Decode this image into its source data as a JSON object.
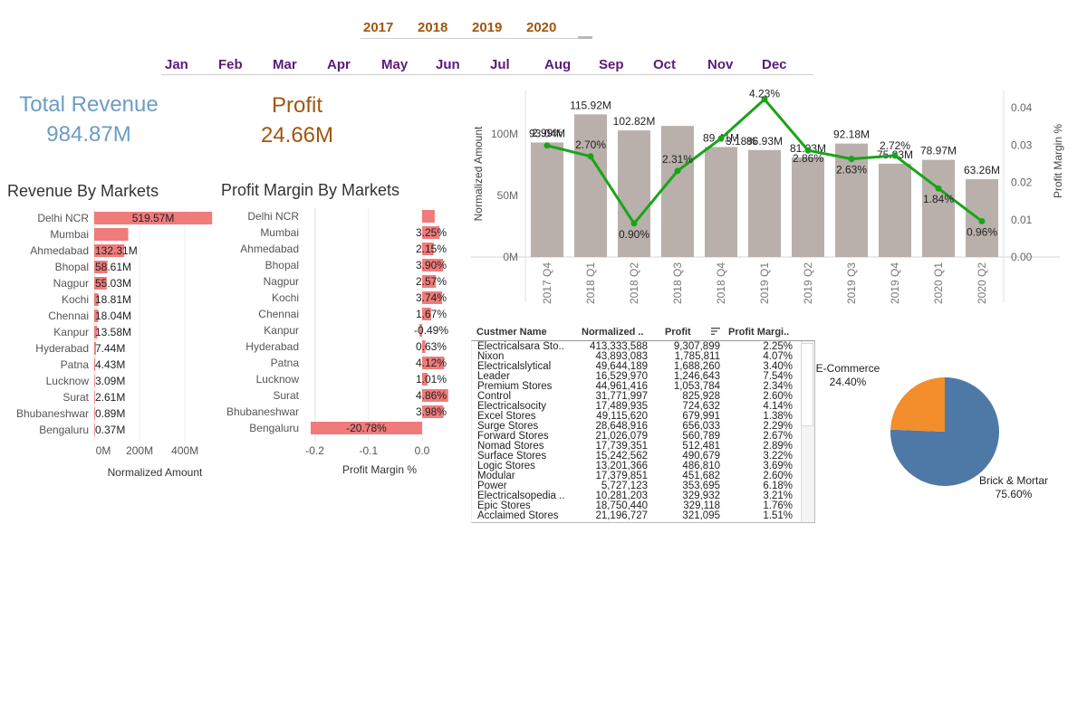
{
  "filters": {
    "years": [
      "2017",
      "2018",
      "2019",
      "2020"
    ],
    "months": [
      "Jan",
      "Feb",
      "Mar",
      "Apr",
      "May",
      "Jun",
      "Jul",
      "Aug",
      "Sep",
      "Oct",
      "Nov",
      "Dec"
    ]
  },
  "kpis": {
    "revenue_label": "Total Revenue",
    "revenue_value": "984.87M",
    "profit_label": "Profit",
    "profit_value": "24.66M"
  },
  "colors": {
    "kpi_revenue": "#6c9cc4",
    "kpi_profit": "#a0560e",
    "bar_red": "#f07b7b",
    "bar_grey": "#b9b0ab",
    "line_green": "#18a418",
    "pie_brick": "#4e79a7",
    "pie_ecom": "#f28e2b",
    "year_text": "#a0560e",
    "month_text": "#5b1a7a"
  },
  "revenue_by_markets": {
    "title": "Revenue By Markets",
    "xlabel": "Normalized Amount",
    "ticks": [
      "0M",
      "200M",
      "400M"
    ]
  },
  "profit_margin_by_markets": {
    "title": "Profit Margin By Markets",
    "xlabel": "Profit Margin %",
    "ticks": [
      "-0.2",
      "-0.1",
      "0.0"
    ]
  },
  "trend": {
    "y_left_label": "Normalized Amount",
    "y_right_label": "Profit Margin %",
    "y_left_ticks": [
      "0M",
      "50M",
      "100M"
    ],
    "y_right_ticks": [
      "0.00",
      "0.01",
      "0.02",
      "0.03",
      "0.04"
    ]
  },
  "table": {
    "headers": [
      "Custmer Name",
      "Normalized ..",
      "Profit",
      "Profit Margi.."
    ],
    "rows": [
      [
        "Electricalsara Sto..",
        "413,333,588",
        "9,307,899",
        "2.25%"
      ],
      [
        "Nixon",
        "43,893,083",
        "1,785,811",
        "4.07%"
      ],
      [
        "Electricalslytical",
        "49,644,189",
        "1,688,260",
        "3.40%"
      ],
      [
        "Leader",
        "16,529,970",
        "1,246,643",
        "7.54%"
      ],
      [
        "Premium Stores",
        "44,961,416",
        "1,053,784",
        "2.34%"
      ],
      [
        "Control",
        "31,771,997",
        "825,928",
        "2.60%"
      ],
      [
        "Electricalsocity",
        "17,489,935",
        "724,632",
        "4.14%"
      ],
      [
        "Excel Stores",
        "49,115,620",
        "679,991",
        "1.38%"
      ],
      [
        "Surge Stores",
        "28,648,916",
        "656,033",
        "2.29%"
      ],
      [
        "Forward Stores",
        "21,026,079",
        "560,789",
        "2.67%"
      ],
      [
        "Nomad Stores",
        "17,739,351",
        "512,481",
        "2.89%"
      ],
      [
        "Surface Stores",
        "15,242,562",
        "490,679",
        "3.22%"
      ],
      [
        "Logic Stores",
        "13,201,366",
        "486,810",
        "3.69%"
      ],
      [
        "Modular",
        "17,379,851",
        "451,682",
        "2.60%"
      ],
      [
        "Power",
        "5,727,123",
        "353,695",
        "6.18%"
      ],
      [
        "Electricalsopedia ..",
        "10,281,203",
        "329,932",
        "3.21%"
      ],
      [
        "Epic Stores",
        "18,750,440",
        "329,118",
        "1.76%"
      ],
      [
        "Acclaimed Stores",
        "21,196,727",
        "321,095",
        "1.51%"
      ]
    ]
  },
  "chart_data": [
    {
      "type": "bar",
      "title": "Revenue By Markets",
      "xlabel": "Normalized Amount",
      "orientation": "horizontal",
      "categories": [
        "Delhi NCR",
        "Mumbai",
        "Ahmedabad",
        "Bhopal",
        "Nagpur",
        "Kochi",
        "Chennai",
        "Kanpur",
        "Hyderabad",
        "Patna",
        "Lucknow",
        "Surat",
        "Bhubaneshwar",
        "Bengaluru"
      ],
      "values": [
        519.57,
        150.0,
        132.31,
        58.61,
        55.03,
        18.81,
        18.04,
        13.58,
        7.44,
        4.43,
        3.09,
        2.61,
        0.89,
        0.37
      ],
      "labels": [
        "519.57M",
        "",
        "132.31M",
        "58.61M",
        "55.03M",
        "18.81M",
        "18.04M",
        "13.58M",
        "7.44M",
        "4.43M",
        "3.09M",
        "2.61M",
        "0.89M",
        "0.37M"
      ],
      "xlim": [
        0,
        530
      ]
    },
    {
      "type": "bar",
      "title": "Profit Margin By Markets",
      "xlabel": "Profit Margin %",
      "orientation": "horizontal",
      "categories": [
        "Delhi NCR",
        "Mumbai",
        "Ahmedabad",
        "Bhopal",
        "Nagpur",
        "Kochi",
        "Chennai",
        "Kanpur",
        "Hyderabad",
        "Patna",
        "Lucknow",
        "Surat",
        "Bhubaneshwar",
        "Bengaluru"
      ],
      "values": [
        0.0235,
        0.0325,
        0.0215,
        0.039,
        0.0257,
        0.0374,
        0.0167,
        -0.0049,
        0.0063,
        0.0412,
        0.0101,
        0.0486,
        0.0398,
        -0.2078
      ],
      "labels": [
        "",
        "3.25%",
        "2.15%",
        "3.90%",
        "2.57%",
        "3.74%",
        "1.67%",
        "-0.49%",
        "0.63%",
        "4.12%",
        "1.01%",
        "4.86%",
        "3.98%",
        "-20.78%"
      ],
      "xlim": [
        -0.21,
        0.06
      ]
    },
    {
      "type": "bar",
      "title": "",
      "ylabel": "Normalized Amount",
      "y2label": "Profit Margin %",
      "categories": [
        "2017 Q4",
        "2018 Q1",
        "2018 Q2",
        "2018 Q3",
        "2018 Q4",
        "2019 Q1",
        "2019 Q2",
        "2019 Q3",
        "2019 Q4",
        "2020 Q1",
        "2020 Q2"
      ],
      "series": [
        {
          "values": [
            93.04,
            115.92,
            102.82,
            106.5,
            89.41,
            86.93,
            81.03,
            92.18,
            75.83,
            78.97,
            63.26
          ],
          "labels": [
            "93.04M",
            "115.92M",
            "102.82M",
            "",
            "89.41M",
            "86.93M",
            "81.03M",
            "92.18M",
            "75.83M",
            "78.97M",
            "63.26M"
          ]
        },
        {
          "type": "line",
          "axis": "right",
          "values": [
            0.0299,
            0.027,
            0.009,
            0.0231,
            0.0318,
            0.0423,
            0.0286,
            0.0263,
            0.0272,
            0.0184,
            0.0096
          ],
          "labels": [
            "2.99%",
            "2.70%",
            "0.90%",
            "2.31%",
            "3.18%",
            "4.23%",
            "2.86%",
            "2.63%",
            "2.72%",
            "1.84%",
            "0.96%"
          ]
        }
      ],
      "ylim": [
        0,
        130
      ],
      "y2lim": [
        0,
        0.045
      ]
    },
    {
      "type": "pie",
      "categories": [
        "Brick & Mortar",
        "E-Commerce"
      ],
      "values": [
        75.6,
        24.4
      ],
      "labels": [
        "75.60%",
        "24.40%"
      ]
    }
  ]
}
